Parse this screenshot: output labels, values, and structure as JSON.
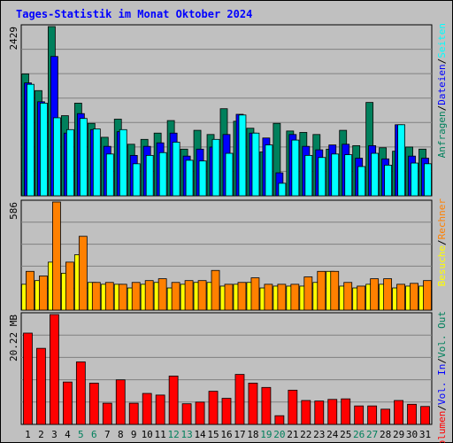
{
  "title": "Tages-Statistik im Monat Oktober 2024",
  "colors": {
    "background": "#c0c0c0",
    "title": "#0000ff",
    "grid": "#808080",
    "anfragen": "#00805c",
    "dateien": "#0000ff",
    "seiten": "#00ffff",
    "besuche": "#ffff00",
    "rechner": "#ff8000",
    "kbytes": "#ff0000"
  },
  "chart_data": [
    {
      "type": "bar",
      "panel": "anfragen-dateien-seiten",
      "ymax_label": "2429",
      "ylim": [
        0,
        2429
      ],
      "categories": [
        "1",
        "2",
        "3",
        "4",
        "5",
        "6",
        "7",
        "8",
        "9",
        "10",
        "11",
        "12",
        "13",
        "14",
        "15",
        "16",
        "17",
        "18",
        "19",
        "20",
        "21",
        "22",
        "23",
        "24",
        "25",
        "26",
        "27",
        "28",
        "29",
        "30",
        "31"
      ],
      "weekend_days": [
        "5",
        "6",
        "12",
        "13",
        "19",
        "20",
        "26",
        "27"
      ],
      "right_label": [
        {
          "text": "Anfragen",
          "color": "anfragen"
        },
        {
          "text": "Dateien",
          "color": "dateien"
        },
        {
          "text": "Seiten",
          "color": "seiten"
        }
      ],
      "series": [
        {
          "name": "Anfragen",
          "color": "anfragen",
          "values": [
            1750,
            1510,
            2429,
            1150,
            1330,
            1040,
            840,
            1100,
            740,
            810,
            900,
            1080,
            670,
            940,
            880,
            1250,
            1070,
            970,
            630,
            1040,
            930,
            910,
            880,
            670,
            940,
            720,
            1340,
            690,
            640,
            700,
            670
          ]
        },
        {
          "name": "Dateien",
          "color": "dateien",
          "values": [
            1620,
            1350,
            2000,
            900,
            1180,
            950,
            710,
            920,
            580,
            710,
            760,
            900,
            570,
            670,
            700,
            880,
            1170,
            900,
            830,
            330,
            880,
            710,
            660,
            730,
            740,
            540,
            720,
            530,
            1020,
            570,
            540
          ]
        },
        {
          "name": "Seiten",
          "color": "seiten",
          "values": [
            1600,
            1330,
            1120,
            950,
            1110,
            960,
            600,
            950,
            460,
            580,
            620,
            770,
            510,
            500,
            810,
            610,
            1160,
            900,
            730,
            180,
            800,
            580,
            550,
            600,
            590,
            420,
            610,
            440,
            1020,
            470,
            460
          ]
        }
      ]
    },
    {
      "type": "bar",
      "panel": "besuche-rechner",
      "ymax_label": "586",
      "ylim": [
        0,
        586
      ],
      "right_label": [
        {
          "text": "Besuche",
          "color": "besuche"
        },
        {
          "text": "Rechner",
          "color": "rechner"
        }
      ],
      "series": [
        {
          "name": "Besuche",
          "color": "besuche",
          "values": [
            140,
            160,
            260,
            200,
            300,
            150,
            140,
            140,
            120,
            140,
            150,
            120,
            140,
            150,
            150,
            130,
            140,
            150,
            120,
            130,
            130,
            130,
            150,
            210,
            130,
            120,
            140,
            140,
            120,
            130,
            130
          ]
        },
        {
          "name": "Rechner",
          "color": "rechner",
          "values": [
            210,
            185,
            586,
            260,
            400,
            150,
            150,
            140,
            150,
            160,
            170,
            150,
            160,
            160,
            215,
            140,
            150,
            175,
            140,
            140,
            140,
            180,
            210,
            210,
            150,
            130,
            170,
            170,
            140,
            145,
            160
          ]
        }
      ]
    },
    {
      "type": "bar",
      "panel": "kbytes",
      "ymax_label": "20.22 MB",
      "ylim": [
        0,
        20.22
      ],
      "right_label": [
        {
          "text": "Volumen",
          "color": "kbytes"
        },
        {
          "text": "Vol. In",
          "color": "dateien"
        },
        {
          "text": "Vol. Out",
          "color": "anfragen"
        }
      ],
      "series": [
        {
          "name": "Volumen",
          "color": "kbytes",
          "values": [
            16.8,
            14.0,
            20.22,
            7.8,
            11.5,
            7.6,
            3.9,
            8.2,
            3.9,
            5.7,
            5.4,
            8.9,
            3.8,
            4.1,
            6.1,
            4.8,
            9.2,
            7.6,
            6.8,
            1.6,
            6.3,
            4.4,
            4.3,
            4.6,
            4.7,
            3.4,
            3.4,
            2.8,
            4.4,
            3.7,
            3.3
          ]
        }
      ]
    }
  ]
}
